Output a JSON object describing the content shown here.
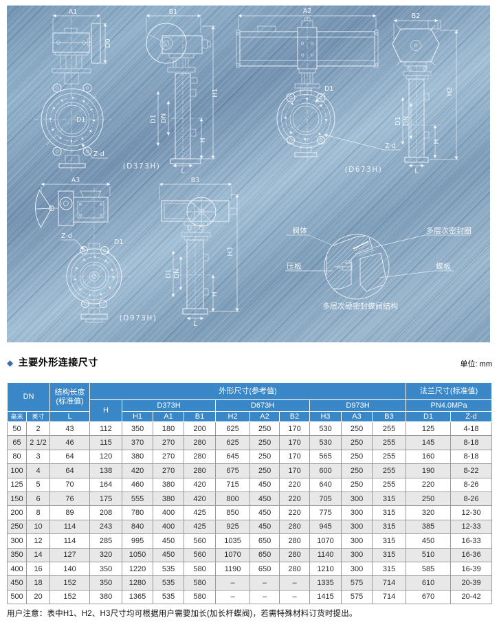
{
  "colors": {
    "panel_blue": "#8fafc9",
    "header_blue": "#3a87c7",
    "diamond_accent": "#3a6fae",
    "row_alt": "#e8e8e8"
  },
  "section": {
    "bullet": "◆",
    "title": "主要外形连接尺寸",
    "unit_label": "单位: mm"
  },
  "note": "用户注意：表中H1、H2、H3尺寸均可根据用户需要加长(加长杆蝶阀)，若需特殊材料订货时提出。",
  "diagrams": {
    "d373h": {
      "caption": "(D373H)",
      "dims": {
        "a1": "A1",
        "d0": "D0",
        "b1": "B1",
        "h1": "H1",
        "d1": "D1",
        "dn": "DN",
        "h": "H",
        "l": "L",
        "zd": "Z-d"
      }
    },
    "d673h": {
      "caption": "(D673H)",
      "dims": {
        "a2": "A2",
        "b2": "B2",
        "h2": "H2",
        "d1": "D1",
        "dn": "DN",
        "h": "H",
        "l": "L",
        "zd": "Z-d"
      }
    },
    "d973h": {
      "caption": "(D973H)",
      "dims": {
        "a3": "A3",
        "b3": "B3",
        "h3": "H3",
        "d1": "D1",
        "dn": "DN",
        "h": "H",
        "l": "L",
        "zd": "Z-d"
      }
    },
    "detail": {
      "caption": "多层次硬密封蝶阀结构",
      "labels": {
        "valve_body": "阀体",
        "seal_ring": "多层次密封圈",
        "press_plate": "压板",
        "disc": "蝶板"
      }
    }
  },
  "table": {
    "header": {
      "dn": "DN",
      "struct_len": "结构长度\n(标准值)",
      "outline": "外形尺寸(参考值)",
      "flange": "法兰尺寸(标准值)",
      "h": "H",
      "d373h": "D373H",
      "d673h": "D673H",
      "d973h": "D973H",
      "pn": "PN4.0MPa",
      "sub": [
        "毫米",
        "英寸",
        "L",
        "H1",
        "A1",
        "B1",
        "H2",
        "A2",
        "B2",
        "H3",
        "A3",
        "B3",
        "D1",
        "Z-d"
      ]
    },
    "rows": [
      [
        "50",
        "2",
        "43",
        "112",
        "350",
        "180",
        "200",
        "625",
        "250",
        "170",
        "530",
        "250",
        "255",
        "125",
        "4-18"
      ],
      [
        "65",
        "2 1/2",
        "46",
        "115",
        "370",
        "270",
        "280",
        "625",
        "250",
        "170",
        "530",
        "250",
        "255",
        "145",
        "8-18"
      ],
      [
        "80",
        "3",
        "64",
        "120",
        "380",
        "270",
        "280",
        "645",
        "250",
        "170",
        "565",
        "250",
        "255",
        "160",
        "8-18"
      ],
      [
        "100",
        "4",
        "64",
        "138",
        "420",
        "270",
        "280",
        "675",
        "250",
        "170",
        "600",
        "250",
        "255",
        "190",
        "8-22"
      ],
      [
        "125",
        "5",
        "70",
        "164",
        "460",
        "380",
        "420",
        "715",
        "450",
        "220",
        "640",
        "250",
        "255",
        "220",
        "8-26"
      ],
      [
        "150",
        "6",
        "76",
        "175",
        "555",
        "380",
        "420",
        "800",
        "450",
        "220",
        "705",
        "300",
        "315",
        "250",
        "8-26"
      ],
      [
        "200",
        "8",
        "89",
        "208",
        "780",
        "400",
        "425",
        "850",
        "450",
        "220",
        "775",
        "300",
        "315",
        "320",
        "12-30"
      ],
      [
        "250",
        "10",
        "114",
        "243",
        "840",
        "400",
        "425",
        "925",
        "450",
        "280",
        "945",
        "300",
        "315",
        "385",
        "12-33"
      ],
      [
        "300",
        "12",
        "114",
        "285",
        "995",
        "450",
        "560",
        "1035",
        "650",
        "280",
        "1070",
        "300",
        "315",
        "450",
        "16-33"
      ],
      [
        "350",
        "14",
        "127",
        "320",
        "1050",
        "450",
        "560",
        "1070",
        "650",
        "280",
        "1140",
        "300",
        "315",
        "510",
        "16-36"
      ],
      [
        "400",
        "16",
        "140",
        "350",
        "1220",
        "535",
        "580",
        "1190",
        "650",
        "280",
        "1210",
        "300",
        "315",
        "585",
        "16-39"
      ],
      [
        "450",
        "18",
        "152",
        "350",
        "1280",
        "535",
        "580",
        "–",
        "–",
        "–",
        "1335",
        "575",
        "714",
        "610",
        "20-39"
      ],
      [
        "500",
        "20",
        "152",
        "380",
        "1365",
        "535",
        "580",
        "–",
        "–",
        "–",
        "1415",
        "575",
        "714",
        "670",
        "20-42"
      ]
    ]
  }
}
